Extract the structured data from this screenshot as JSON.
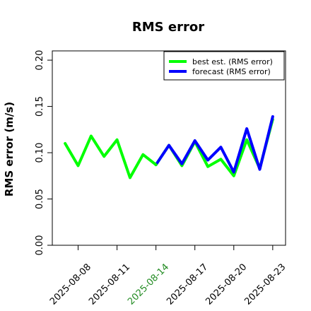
{
  "chart_data": {
    "type": "line",
    "title": "RMS error",
    "xlabel": "",
    "ylabel": "RMS error (m/s)",
    "x": [
      "2025-08-07",
      "2025-08-08",
      "2025-08-09",
      "2025-08-10",
      "2025-08-11",
      "2025-08-12",
      "2025-08-13",
      "2025-08-14",
      "2025-08-15",
      "2025-08-16",
      "2025-08-17",
      "2025-08-18",
      "2025-08-19",
      "2025-08-20",
      "2025-08-21",
      "2025-08-22",
      "2025-08-23"
    ],
    "xticks": [
      "2025-08-08",
      "2025-08-11",
      "2025-08-14",
      "2025-08-17",
      "2025-08-20",
      "2025-08-23"
    ],
    "highlighted_xtick": "2025-08-14",
    "yticks": [
      "0.00",
      "0.05",
      "0.10",
      "0.15",
      "0.20"
    ],
    "ylim": [
      0,
      0.21
    ],
    "grid": false,
    "legend_position": "top-right",
    "series": [
      {
        "name": "best est. (RMS error)",
        "color": "#00ff00",
        "values": [
          null,
          null,
          null,
          null,
          null,
          null,
          null,
          0.087,
          0.108,
          0.086,
          0.112,
          0.085,
          0.093,
          0.075,
          0.114,
          0.083,
          0.136
        ]
      },
      {
        "name": "forecast (RMS error)",
        "color": "#0000ff",
        "values": [
          null,
          null,
          null,
          null,
          null,
          null,
          null,
          0.087,
          0.108,
          0.088,
          0.113,
          0.092,
          0.106,
          0.079,
          0.126,
          0.082,
          0.139
        ]
      },
      {
        "name": "",
        "color": "#00ff00",
        "values": [
          0.11,
          0.086,
          0.118,
          0.096,
          0.114,
          0.073,
          0.098,
          0.087,
          null,
          null,
          null,
          null,
          null,
          null,
          null,
          null,
          null
        ]
      }
    ],
    "colors": {
      "highlight_tick": "#228b22",
      "axis": "#000000"
    }
  }
}
